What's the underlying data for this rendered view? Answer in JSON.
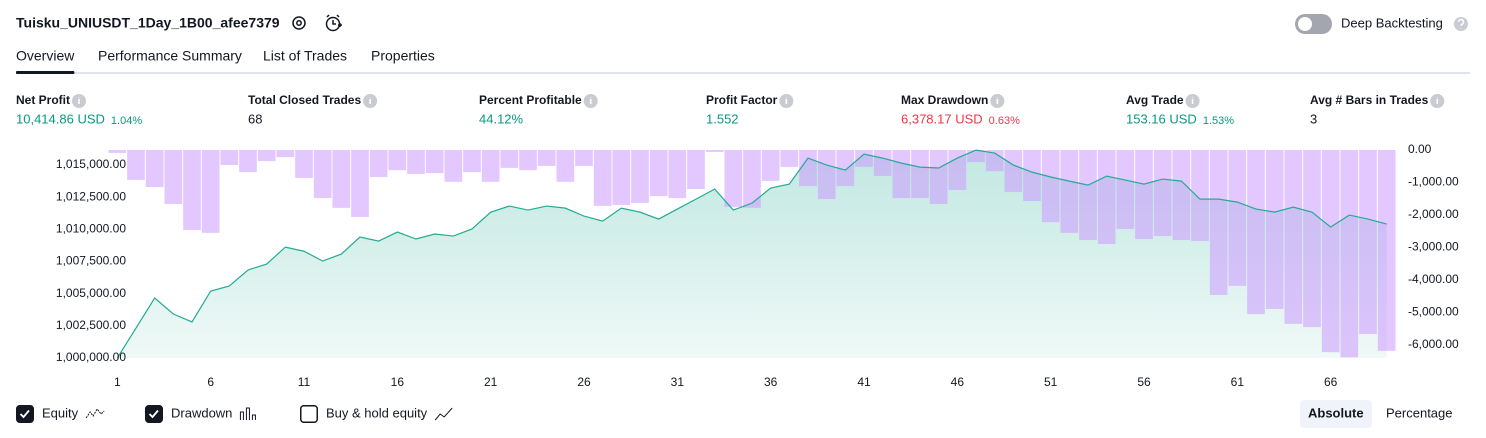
{
  "header": {
    "title": "Tuisku_UNIUSDT_1Day_1B00_afee7379",
    "deep_backtesting": {
      "label": "Deep Backtesting",
      "on": false
    }
  },
  "tabs": {
    "items": [
      "Overview",
      "Performance Summary",
      "List of Trades",
      "Properties"
    ],
    "active": 0
  },
  "metrics": [
    {
      "label": "Net Profit",
      "value": "10,414.86 USD",
      "percent": "1.04%",
      "color": "#089981"
    },
    {
      "label": "Total Closed Trades",
      "value": "68",
      "color": "#131722"
    },
    {
      "label": "Percent Profitable",
      "value": "44.12%",
      "color": "#089981"
    },
    {
      "label": "Profit Factor",
      "value": "1.552",
      "color": "#089981"
    },
    {
      "label": "Max Drawdown",
      "value": "6,378.17 USD",
      "percent": "0.63%",
      "color": "#f23645"
    },
    {
      "label": "Avg Trade",
      "value": "153.16 USD",
      "percent": "1.53%",
      "color": "#089981"
    },
    {
      "label": "Avg # Bars in Trades",
      "value": "3",
      "color": "#131722"
    }
  ],
  "chart_data": {
    "type": "combo",
    "x": [
      1,
      2,
      3,
      4,
      5,
      6,
      7,
      8,
      9,
      10,
      11,
      12,
      13,
      14,
      15,
      16,
      17,
      18,
      19,
      20,
      21,
      22,
      23,
      24,
      25,
      26,
      27,
      28,
      29,
      30,
      31,
      32,
      33,
      34,
      35,
      36,
      37,
      38,
      39,
      40,
      41,
      42,
      43,
      44,
      45,
      46,
      47,
      48,
      49,
      50,
      51,
      52,
      53,
      54,
      55,
      56,
      57,
      58,
      59,
      60,
      61,
      62,
      63,
      64,
      65,
      66,
      67,
      68,
      69
    ],
    "xlim": [
      0.5,
      69.5
    ],
    "xticks": [
      1,
      6,
      11,
      16,
      21,
      26,
      31,
      36,
      41,
      46,
      51,
      56,
      61,
      66
    ],
    "ylim": [
      1000000,
      1016170
    ],
    "yticks": [
      {
        "value": 1000000,
        "label": "1,000,000.00"
      },
      {
        "value": 1002500,
        "label": "1,002,500.00"
      },
      {
        "value": 1005000,
        "label": "1,005,000.00"
      },
      {
        "value": 1007500,
        "label": "1,007,500.00"
      },
      {
        "value": 1010000,
        "label": "1,010,000.00"
      },
      {
        "value": 1012500,
        "label": "1,012,500.00"
      },
      {
        "value": 1015000,
        "label": "1,015,000.00"
      }
    ],
    "y2lim": [
      -6400,
      0
    ],
    "y2ticks": [
      {
        "value": 0,
        "label": "0.00"
      },
      {
        "value": -1000,
        "label": "-1,000.00"
      },
      {
        "value": -2000,
        "label": "-2,000.00"
      },
      {
        "value": -3000,
        "label": "-3,000.00"
      },
      {
        "value": -4000,
        "label": "-4,000.00"
      },
      {
        "value": -5000,
        "label": "-5,000.00"
      },
      {
        "value": -6000,
        "label": "-6,000.00"
      }
    ],
    "series": [
      {
        "name": "Equity",
        "kind": "area",
        "color": "#22ab94",
        "visible": true,
        "values": [
          1000000,
          1002330,
          1004660,
          1003420,
          1002800,
          1005200,
          1005600,
          1006840,
          1007300,
          1008620,
          1008300,
          1007540,
          1008080,
          1009400,
          1009090,
          1009790,
          1009250,
          1009640,
          1009480,
          1010030,
          1011340,
          1011810,
          1011500,
          1011810,
          1011650,
          1011030,
          1010640,
          1011650,
          1011340,
          1010800,
          1011580,
          1012350,
          1013130,
          1011500,
          1012040,
          1013210,
          1013520,
          1015540,
          1015000,
          1014610,
          1015850,
          1015540,
          1015150,
          1014840,
          1014770,
          1015540,
          1016160,
          1015930,
          1015000,
          1014450,
          1014070,
          1013750,
          1013440,
          1014140,
          1013830,
          1013520,
          1013910,
          1013750,
          1012350,
          1012350,
          1012120,
          1011580,
          1011340,
          1011730,
          1011340,
          1010180,
          1011110,
          1010800,
          1010410
        ]
      },
      {
        "name": "Drawdown",
        "kind": "bar",
        "axis": "y2",
        "color": "#cc99ff",
        "visible": true,
        "values": [
          -90,
          -920,
          -1140,
          -1660,
          -2460,
          -2550,
          -460,
          -680,
          -340,
          -220,
          -860,
          -1480,
          -1780,
          -2060,
          -830,
          -620,
          -740,
          -710,
          -980,
          -680,
          -980,
          -550,
          -620,
          -490,
          -980,
          -490,
          -1720,
          -1690,
          -1630,
          -1420,
          -1480,
          -1200,
          -60,
          -1750,
          -1780,
          -950,
          -520,
          -1110,
          -1510,
          -1110,
          -520,
          -800,
          -1480,
          -1480,
          -1660,
          -1230,
          -370,
          -650,
          -1290,
          -1570,
          -2220,
          -2550,
          -2770,
          -2890,
          -2430,
          -2740,
          -2650,
          -2770,
          -2800,
          -4460,
          -4180,
          -5050,
          -4890,
          -5350,
          -5450,
          -6220,
          -6380,
          -5660,
          -6180
        ]
      }
    ],
    "benchmark": {
      "name": "Buy & hold equity",
      "visible": false
    }
  },
  "view_buttons": {
    "items": [
      "Absolute",
      "Percentage"
    ],
    "active": 0
  }
}
